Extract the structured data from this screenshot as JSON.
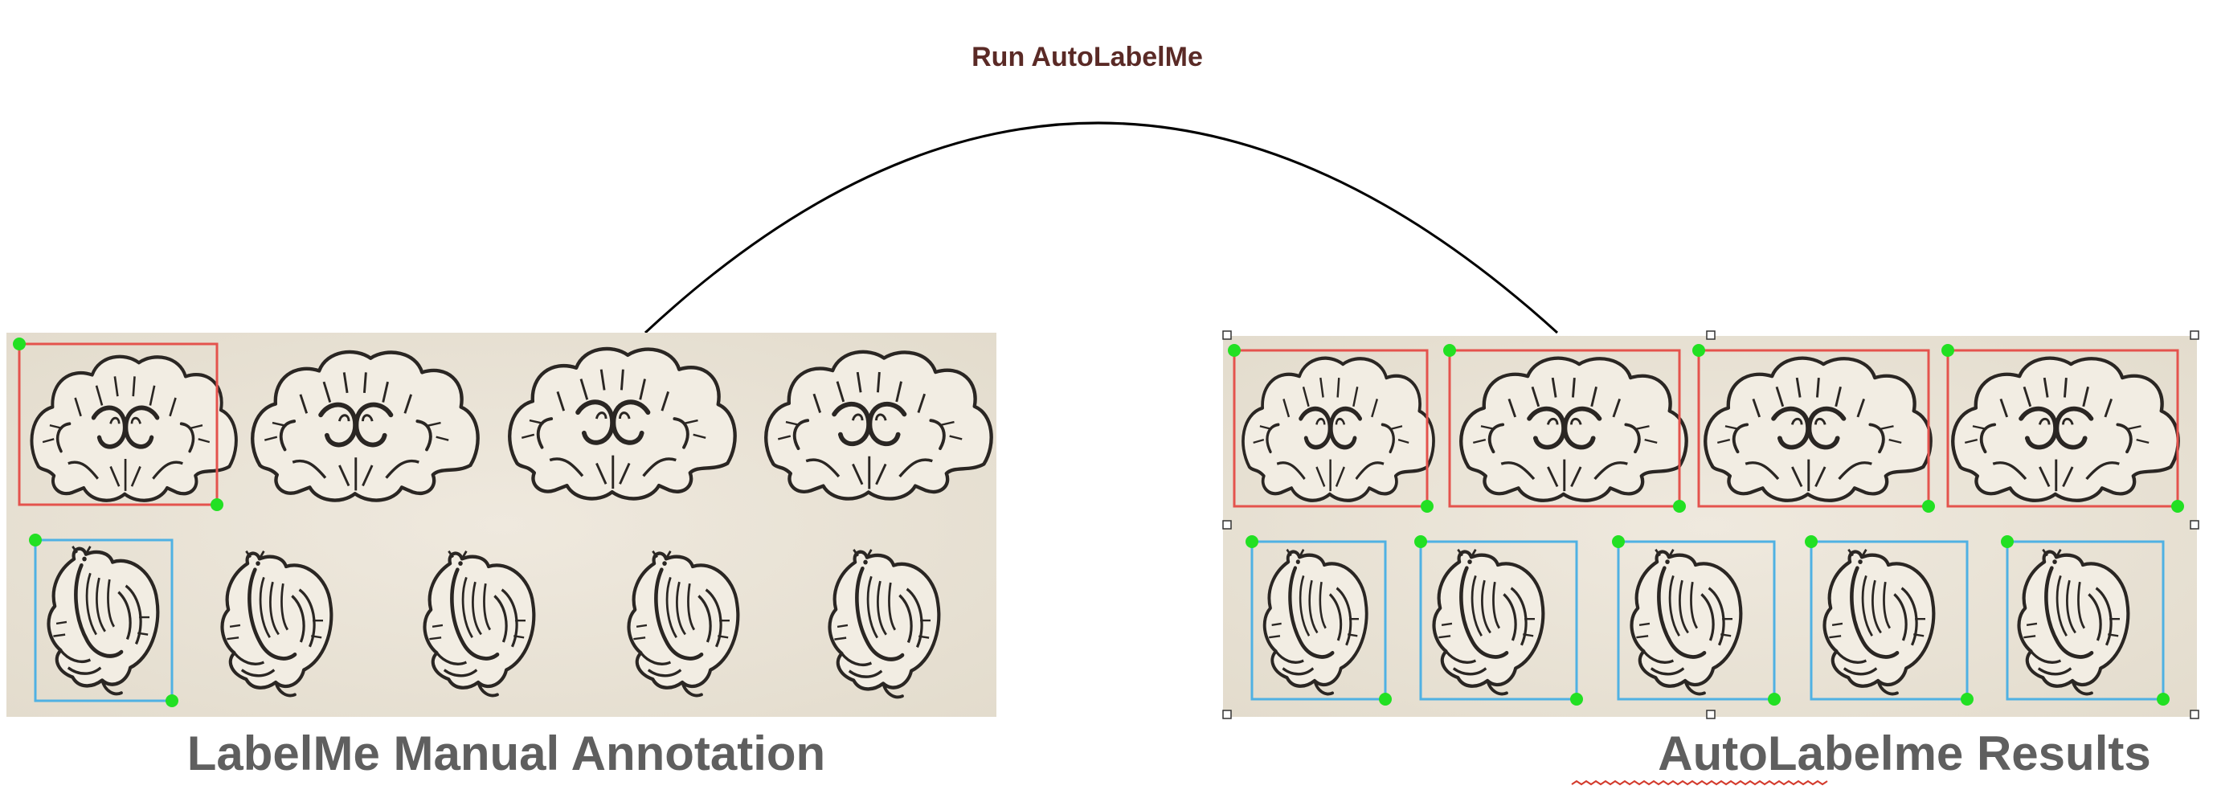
{
  "arrow_label": "Run AutoLabelMe",
  "left_panel": {
    "caption": "LabelMe Manual Annotation"
  },
  "right_panel": {
    "caption": "AutoLabelme Results"
  },
  "colors": {
    "background": "#ffffff",
    "paper": "#ece6da",
    "ink": "#2a2623",
    "shell_box": "#e4534d",
    "bird_box": "#4fb1e3",
    "corner_point": "#22e023",
    "arc": "#000000",
    "arrow_label": "#5a2a26",
    "caption": "#5f5f5f",
    "spellcheck": "#d33a2c"
  },
  "icons": {
    "row1_motif": "scallop-shell-ornament-icon",
    "row2_motif": "bird-ornament-icon"
  }
}
